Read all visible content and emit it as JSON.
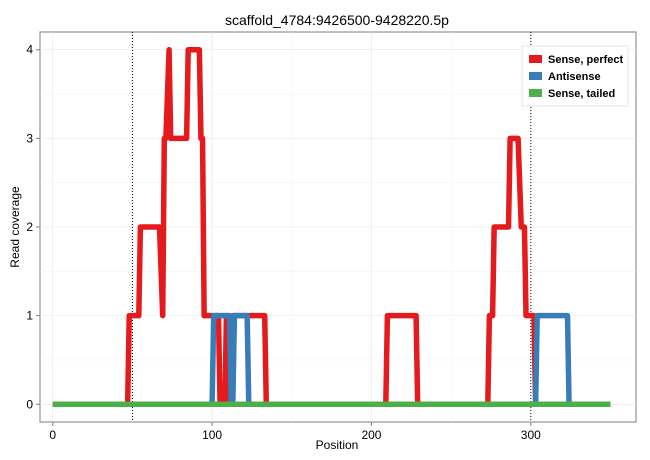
{
  "chart_data": {
    "type": "line",
    "title": "scaffold_4784:9426500-9428220.5p",
    "xlabel": "Position",
    "ylabel": "Read coverage",
    "xlim": [
      -8,
      366
    ],
    "ylim": [
      -0.2,
      4.2
    ],
    "x_ticks": [
      0,
      100,
      200,
      300
    ],
    "y_ticks": [
      0,
      1,
      2,
      3,
      4
    ],
    "x_tick_labels": [
      "0",
      "100",
      "200",
      "300"
    ],
    "y_tick_labels": [
      "0",
      "1",
      "2",
      "3",
      "4"
    ],
    "vlines": [
      50,
      300
    ],
    "grid": true,
    "legend_position": "top-right",
    "series": [
      {
        "name": "Sense, perfect",
        "color": "#E41A1C",
        "x": [
          0,
          47,
          48,
          52,
          54,
          55,
          67,
          69,
          70,
          71,
          73,
          74,
          82,
          84,
          85,
          91,
          92,
          93,
          94,
          95,
          96,
          99,
          102,
          104,
          105,
          106,
          108,
          109,
          110,
          111,
          112,
          113,
          114,
          126,
          127,
          128,
          130,
          131,
          132,
          133,
          134,
          208,
          209,
          210,
          211,
          227,
          228,
          229,
          272,
          273,
          274,
          275,
          276,
          277,
          280,
          281,
          282,
          285,
          286,
          287,
          288,
          290,
          292,
          294,
          295,
          296,
          297,
          298,
          300,
          301,
          302,
          303,
          350
        ],
        "y": [
          0,
          0,
          1,
          1,
          1,
          2,
          2,
          1,
          3,
          3,
          4,
          3,
          3,
          3,
          4,
          4,
          4,
          3,
          3,
          1,
          1,
          1,
          1,
          1,
          0,
          0,
          0,
          1,
          1,
          0,
          0,
          1,
          1,
          1,
          1,
          1,
          1,
          1,
          1,
          1,
          0,
          0,
          0,
          1,
          1,
          1,
          1,
          0,
          0,
          0,
          1,
          1,
          1,
          2,
          2,
          2,
          2,
          2,
          2,
          3,
          3,
          3,
          3,
          2,
          2,
          2,
          1,
          1,
          1,
          1,
          1,
          0,
          0
        ]
      },
      {
        "name": "Antisense",
        "color": "#377EB8",
        "x": [
          0,
          100,
          101,
          103,
          104,
          105,
          106,
          109,
          110,
          111,
          112,
          113,
          114,
          118,
          119,
          120,
          121,
          122,
          123,
          124,
          126,
          300,
          301,
          303,
          304,
          305,
          306,
          323,
          324,
          325,
          350
        ],
        "y": [
          0,
          0,
          1,
          1,
          1,
          1,
          1,
          1,
          1,
          1,
          0,
          0,
          1,
          1,
          1,
          1,
          1,
          1,
          0,
          0,
          0,
          0,
          0,
          0,
          1,
          1,
          1,
          1,
          0,
          0,
          0
        ]
      },
      {
        "name": "Sense, tailed",
        "color": "#4DAF4A",
        "x": [
          0,
          350
        ],
        "y": [
          0,
          0
        ]
      }
    ]
  }
}
